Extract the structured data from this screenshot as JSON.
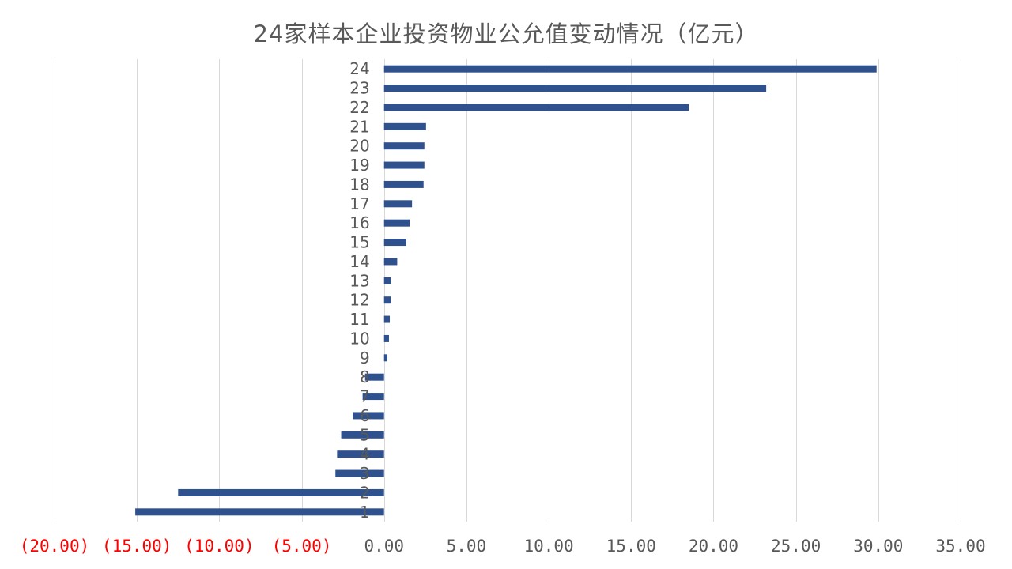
{
  "chart_data": {
    "type": "bar",
    "orientation": "horizontal",
    "title": "24家样本企业投资物业公允值变动情况（亿元）",
    "xlabel": "",
    "ylabel": "",
    "categories": [
      "1",
      "2",
      "3",
      "4",
      "5",
      "6",
      "7",
      "8",
      "9",
      "10",
      "11",
      "12",
      "13",
      "14",
      "15",
      "16",
      "17",
      "18",
      "19",
      "20",
      "21",
      "22",
      "23",
      "24"
    ],
    "values": [
      -15.1,
      -12.5,
      -2.95,
      -2.85,
      -2.6,
      -1.9,
      -1.3,
      -1.15,
      0.2,
      0.3,
      0.35,
      0.4,
      0.4,
      0.8,
      1.35,
      1.55,
      1.7,
      2.4,
      2.45,
      2.45,
      2.55,
      18.5,
      23.2,
      29.9
    ],
    "xlim": [
      -20,
      35
    ],
    "x_ticks": [
      -20,
      -15,
      -10,
      -5,
      0,
      5,
      10,
      15,
      20,
      25,
      30,
      35
    ],
    "x_tick_labels": [
      "(20.00)",
      "(15.00)",
      "(10.00)",
      "(5.00)",
      "0.00",
      "5.00",
      "10.00",
      "15.00",
      "20.00",
      "25.00",
      "30.00",
      "35.00"
    ],
    "grid": "vertical",
    "legend": "none",
    "colors": {
      "bar": "#2f528f",
      "grid": "#d9d9d9",
      "tick_text": "#595959",
      "negative_tick_text": "#ff0000",
      "title": "#595959"
    }
  }
}
